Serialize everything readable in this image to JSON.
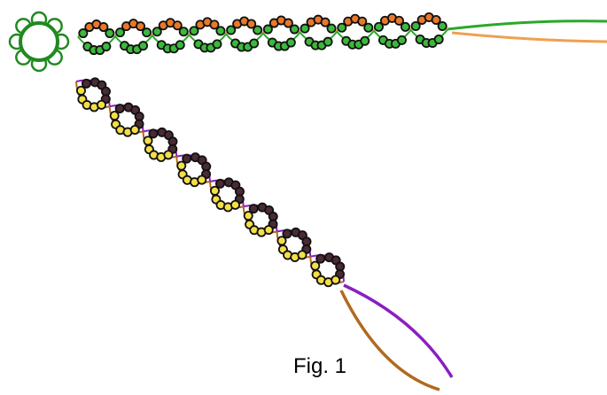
{
  "figure": {
    "caption": "Fig. 1"
  },
  "colors": {
    "background": "#ffffff",
    "ring_outline": "#1f8a1f",
    "green_thread": "#2aa82a",
    "orange_thread": "#f0a050",
    "purple_thread": "#8a1fc0",
    "brown_thread": "#b06a1e",
    "green_bead": "#3cb83c",
    "orange_bead": "#e8782a",
    "yellow_bead": "#f4df46",
    "dark_bead": "#4a2a34",
    "bead_outline": "#111111"
  },
  "icons": {
    "ring": "flower-ring-icon"
  }
}
